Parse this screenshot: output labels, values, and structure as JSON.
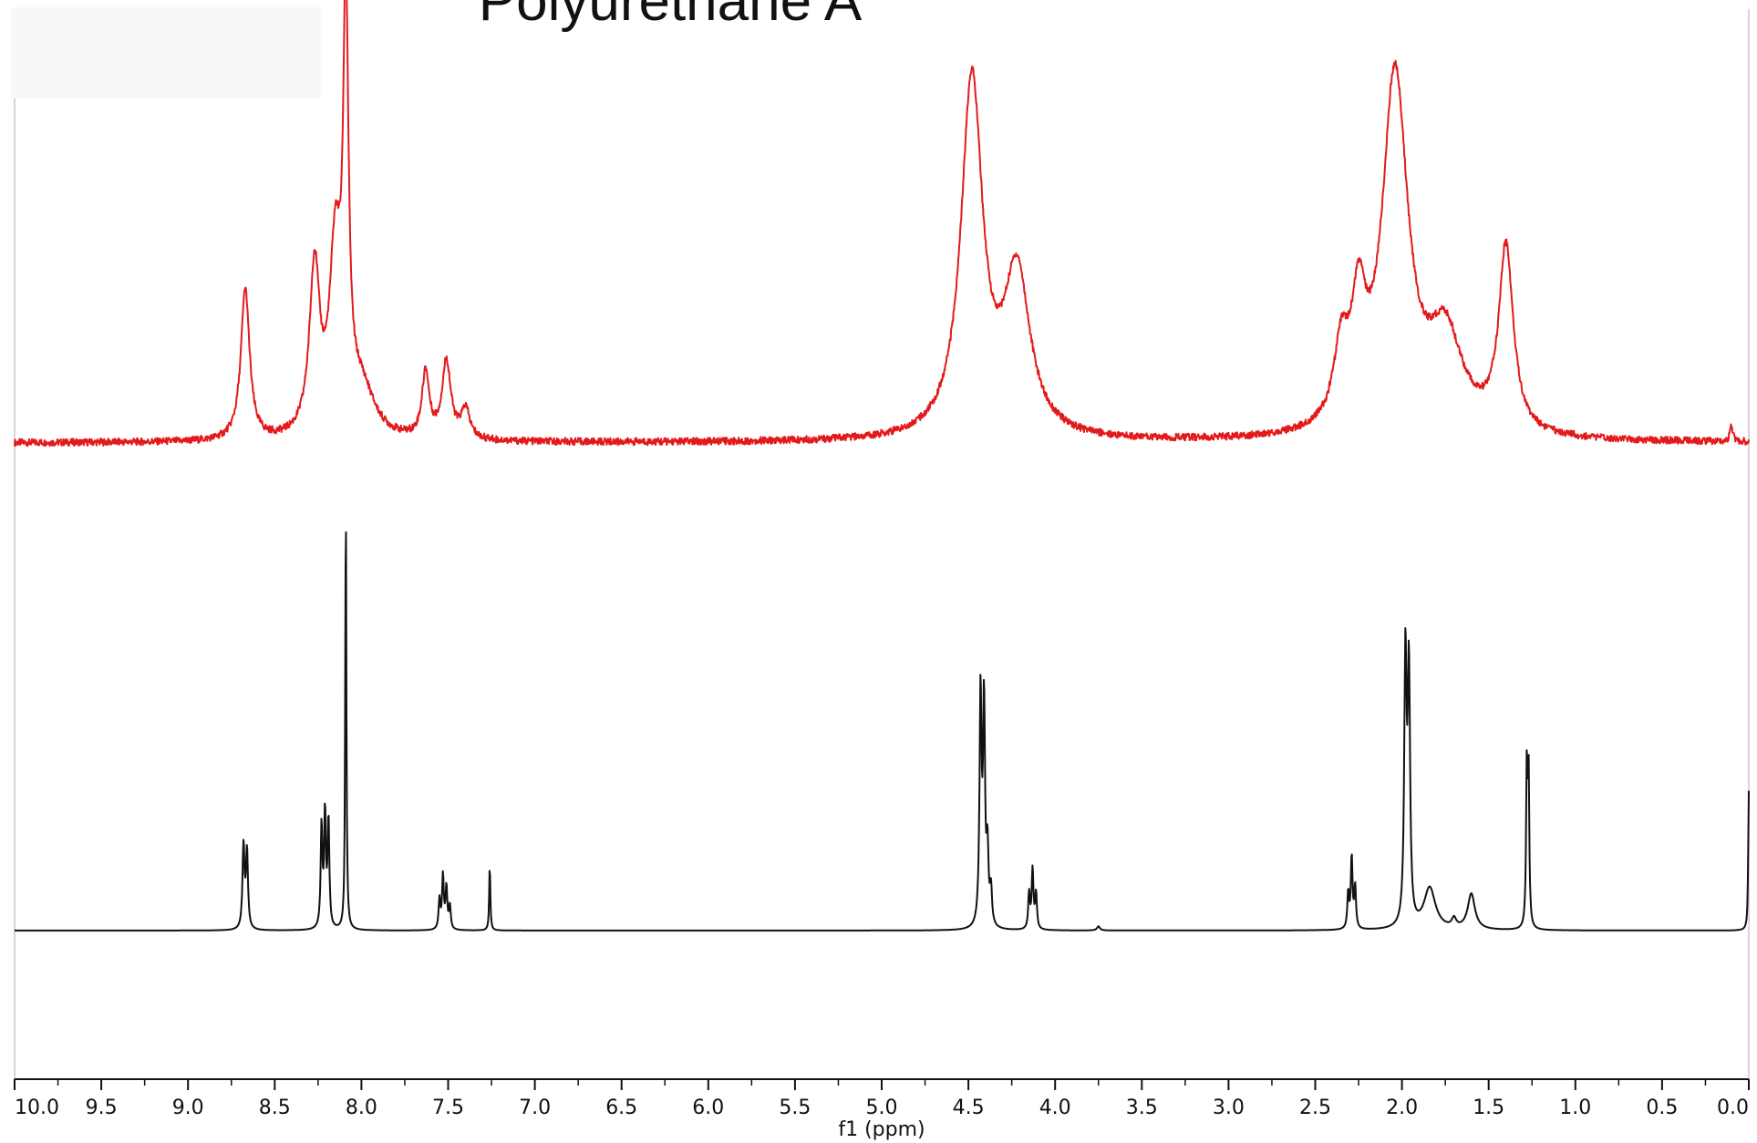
{
  "chart_data": {
    "type": "line",
    "title": "Polyurethane A",
    "xlabel": "f1 (ppm)",
    "ylabel": "",
    "x_reversed": true,
    "xlim": [
      10.0,
      0.0
    ],
    "ylim": [
      -0.25,
      1.55
    ],
    "grid": false,
    "x_ticks": [
      10.0,
      9.5,
      9.0,
      8.5,
      8.0,
      7.5,
      7.0,
      6.5,
      6.0,
      5.5,
      5.0,
      4.5,
      4.0,
      3.5,
      3.0,
      2.5,
      2.0,
      1.5,
      1.0,
      0.5,
      0.0
    ],
    "x_tick_labels": [
      "10.0",
      "9.5",
      "9.0",
      "8.5",
      "8.0",
      "7.5",
      "7.0",
      "6.5",
      "6.0",
      "5.5",
      "5.0",
      "4.5",
      "4.0",
      "3.5",
      "3.0",
      "2.5",
      "2.0",
      "1.5",
      "1.0",
      "0.5",
      "0.0"
    ],
    "series": [
      {
        "color": "#e31a1c",
        "baseline": 0.82,
        "peaks": [
          {
            "ppm": 8.67,
            "height": 0.255,
            "width": 0.03
          },
          {
            "ppm": 8.27,
            "height": 0.28,
            "width": 0.035
          },
          {
            "ppm": 8.15,
            "height": 0.3,
            "width": 0.04
          },
          {
            "ppm": 8.09,
            "height": 0.68,
            "width": 0.018
          },
          {
            "ppm": 8.0,
            "height": 0.08,
            "width": 0.09
          },
          {
            "ppm": 7.63,
            "height": 0.11,
            "width": 0.025
          },
          {
            "ppm": 7.51,
            "height": 0.13,
            "width": 0.03
          },
          {
            "ppm": 7.4,
            "height": 0.05,
            "width": 0.03
          },
          {
            "ppm": 4.48,
            "height": 0.6,
            "width": 0.075
          },
          {
            "ppm": 4.22,
            "height": 0.27,
            "width": 0.09
          },
          {
            "ppm": 2.35,
            "height": 0.12,
            "width": 0.05
          },
          {
            "ppm": 2.25,
            "height": 0.18,
            "width": 0.05
          },
          {
            "ppm": 2.04,
            "height": 0.6,
            "width": 0.09
          },
          {
            "ppm": 1.75,
            "height": 0.16,
            "width": 0.12
          },
          {
            "ppm": 1.4,
            "height": 0.31,
            "width": 0.05
          },
          {
            "ppm": 0.1,
            "height": 0.025,
            "width": 0.01
          }
        ]
      },
      {
        "color": "#111111",
        "baseline": 0.0,
        "peaks": [
          {
            "ppm": 8.68,
            "height": 0.14,
            "width": 0.007
          },
          {
            "ppm": 8.66,
            "height": 0.13,
            "width": 0.007
          },
          {
            "ppm": 8.23,
            "height": 0.17,
            "width": 0.006
          },
          {
            "ppm": 8.21,
            "height": 0.19,
            "width": 0.006
          },
          {
            "ppm": 8.19,
            "height": 0.18,
            "width": 0.006
          },
          {
            "ppm": 8.09,
            "height": 0.72,
            "width": 0.004
          },
          {
            "ppm": 7.55,
            "height": 0.05,
            "width": 0.006
          },
          {
            "ppm": 7.53,
            "height": 0.09,
            "width": 0.006
          },
          {
            "ppm": 7.51,
            "height": 0.07,
            "width": 0.006
          },
          {
            "ppm": 7.49,
            "height": 0.04,
            "width": 0.006
          },
          {
            "ppm": 7.26,
            "height": 0.108,
            "width": 0.004
          },
          {
            "ppm": 4.43,
            "height": 0.39,
            "width": 0.007
          },
          {
            "ppm": 4.41,
            "height": 0.37,
            "width": 0.007
          },
          {
            "ppm": 4.39,
            "height": 0.12,
            "width": 0.007
          },
          {
            "ppm": 4.37,
            "height": 0.06,
            "width": 0.007
          },
          {
            "ppm": 4.15,
            "height": 0.06,
            "width": 0.006
          },
          {
            "ppm": 4.13,
            "height": 0.1,
            "width": 0.006
          },
          {
            "ppm": 4.11,
            "height": 0.06,
            "width": 0.006
          },
          {
            "ppm": 3.75,
            "height": 0.007,
            "width": 0.01
          },
          {
            "ppm": 2.31,
            "height": 0.06,
            "width": 0.006
          },
          {
            "ppm": 2.29,
            "height": 0.12,
            "width": 0.006
          },
          {
            "ppm": 2.27,
            "height": 0.07,
            "width": 0.006
          },
          {
            "ppm": 1.98,
            "height": 0.45,
            "width": 0.008
          },
          {
            "ppm": 1.96,
            "height": 0.42,
            "width": 0.008
          },
          {
            "ppm": 1.84,
            "height": 0.07,
            "width": 0.04
          },
          {
            "ppm": 1.7,
            "height": 0.015,
            "width": 0.015
          },
          {
            "ppm": 1.6,
            "height": 0.06,
            "width": 0.025
          },
          {
            "ppm": 1.28,
            "height": 0.26,
            "width": 0.005
          },
          {
            "ppm": 1.27,
            "height": 0.25,
            "width": 0.005
          },
          {
            "ppm": 0.0,
            "height": 0.235,
            "width": 0.004
          }
        ]
      }
    ]
  }
}
